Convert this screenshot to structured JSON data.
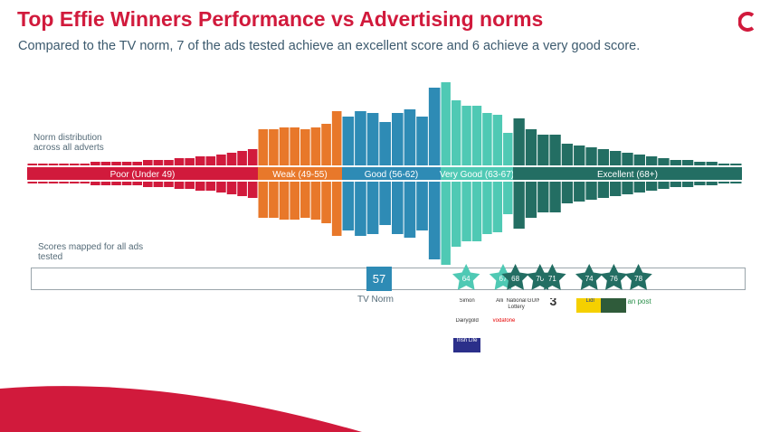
{
  "header": {
    "title": "Top Effie Winners Performance vs Advertising norms",
    "subtitle": "Compared to the TV norm, 7 of the ads tested achieve an excellent score and 6 achieve a very good score.",
    "logo": "kantar-c-icon"
  },
  "labels": {
    "norm_distribution": "Norm distribution across all adverts",
    "scores_mapped": "Scores mapped for all ads tested",
    "tv_norm_label": "TV Norm",
    "tv_norm_value": "57"
  },
  "colors": {
    "poor": "#d11a3c",
    "weak": "#e8782a",
    "good": "#2e8bb5",
    "very_good": "#4fc9b4",
    "excellent": "#236e63",
    "title": "#d11a3c",
    "star": "#236e63",
    "star_light": "#4fc9b4"
  },
  "chart_data": [
    {
      "type": "bar",
      "title": "",
      "description_of_bands": "mirrored distribution bars grouped by score band",
      "bands": [
        {
          "name": "Poor (Under 49)",
          "color": "#d11a3c",
          "values": [
            1,
            1,
            1,
            1,
            1,
            1,
            2,
            2,
            2,
            2,
            2,
            3,
            3,
            3,
            4,
            4,
            5,
            5,
            6,
            7,
            8,
            9
          ]
        },
        {
          "name": "Weak (49-55)",
          "color": "#e8782a",
          "values": [
            20,
            20,
            21,
            21,
            20,
            21,
            23,
            30
          ]
        },
        {
          "name": "Good (56-62)",
          "color": "#2e8bb5",
          "values": [
            27,
            30,
            29,
            24,
            29,
            31,
            27,
            43
          ]
        },
        {
          "name": "Very Good (63-67)",
          "color": "#4fc9b4",
          "values": [
            46,
            36,
            33,
            33,
            29,
            28,
            18
          ]
        },
        {
          "name": "Excellent (68+)",
          "color": "#236e63",
          "values": [
            26,
            20,
            17,
            17,
            12,
            11,
            10,
            9,
            8,
            7,
            6,
            5,
            4,
            3,
            3,
            2,
            2,
            1,
            1
          ]
        }
      ]
    },
    {
      "type": "scatter",
      "title": "",
      "xlabel": "",
      "tv_norm": 57,
      "scores": [
        64,
        67,
        68,
        70,
        71,
        74,
        76,
        78
      ],
      "xlim": [
        27,
        83
      ]
    }
  ],
  "brands": [
    {
      "score": 64,
      "items": [
        "Simon",
        "Dairygold",
        "Irish Life"
      ]
    },
    {
      "score": 67,
      "items": [
        "Allianz",
        "vodafone"
      ]
    },
    {
      "score": 68,
      "items": [
        "National Lottery"
      ]
    },
    {
      "score": 70,
      "items": [
        "GUINNESS"
      ]
    },
    {
      "score": 71,
      "items": [
        "3"
      ]
    },
    {
      "score": 74,
      "items": [
        "Lidl"
      ]
    },
    {
      "score": 76,
      "items": [
        ""
      ]
    },
    {
      "score": 78,
      "items": [
        "an post"
      ]
    }
  ]
}
